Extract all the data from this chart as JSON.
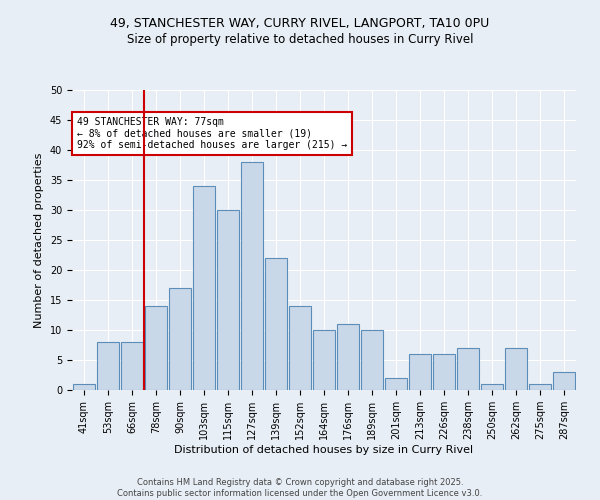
{
  "title_line1": "49, STANCHESTER WAY, CURRY RIVEL, LANGPORT, TA10 0PU",
  "title_line2": "Size of property relative to detached houses in Curry Rivel",
  "xlabel": "Distribution of detached houses by size in Curry Rivel",
  "ylabel": "Number of detached properties",
  "categories": [
    "41sqm",
    "53sqm",
    "66sqm",
    "78sqm",
    "90sqm",
    "103sqm",
    "115sqm",
    "127sqm",
    "139sqm",
    "152sqm",
    "164sqm",
    "176sqm",
    "189sqm",
    "201sqm",
    "213sqm",
    "226sqm",
    "238sqm",
    "250sqm",
    "262sqm",
    "275sqm",
    "287sqm"
  ],
  "values": [
    1,
    8,
    8,
    14,
    17,
    34,
    30,
    38,
    22,
    14,
    10,
    11,
    10,
    2,
    6,
    6,
    7,
    1,
    7,
    1,
    3
  ],
  "bar_color": "#c8d8e8",
  "bar_edge_color": "#5b8db8",
  "reference_line_index": 3,
  "reference_line_color": "#cc0000",
  "ylim": [
    0,
    50
  ],
  "yticks": [
    0,
    5,
    10,
    15,
    20,
    25,
    30,
    35,
    40,
    45,
    50
  ],
  "annotation_text": "49 STANCHESTER WAY: 77sqm\n← 8% of detached houses are smaller (19)\n92% of semi-detached houses are larger (215) →",
  "annotation_box_facecolor": "#ffffff",
  "annotation_box_edgecolor": "#cc0000",
  "footer_line1": "Contains HM Land Registry data © Crown copyright and database right 2025.",
  "footer_line2": "Contains public sector information licensed under the Open Government Licence v3.0.",
  "bg_color": "#e8eef5",
  "grid_color": "#ffffff",
  "title1_fontsize": 9,
  "title2_fontsize": 8.5,
  "axis_label_fontsize": 8,
  "tick_fontsize": 7,
  "annotation_fontsize": 7,
  "footer_fontsize": 6
}
